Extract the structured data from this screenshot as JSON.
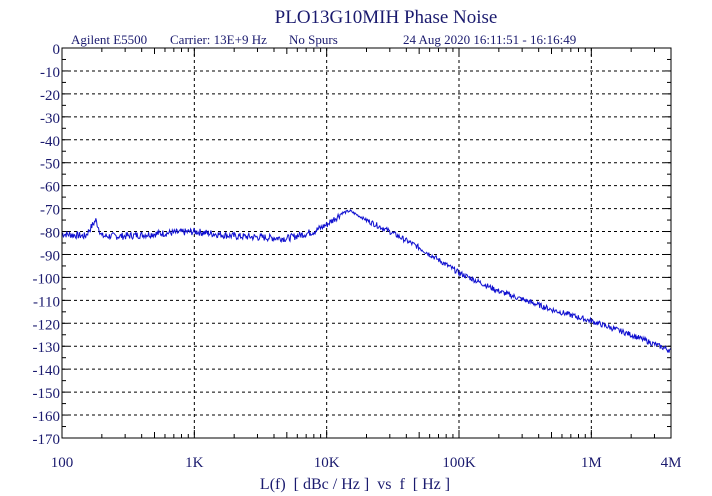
{
  "chart_data": {
    "type": "line",
    "title": "PLO13G10MIH Phase Noise",
    "subtitle": {
      "instrument": "Agilent E5500",
      "carrier": "Carrier: 13E+9 Hz",
      "spurs": "No Spurs",
      "datetime": "24 Aug 2020  16:11:51 - 16:16:49"
    },
    "xlabel": "L(f)  [ dBc / Hz ]  vs  f  [ Hz ]",
    "ylabel": "",
    "x_scale": "log",
    "xlim": [
      100,
      4000000
    ],
    "ylim": [
      -170,
      0
    ],
    "grid": true,
    "x_ticks": [
      {
        "value": 100,
        "label": "100"
      },
      {
        "value": 1000,
        "label": "1K"
      },
      {
        "value": 10000,
        "label": "10K"
      },
      {
        "value": 100000,
        "label": "100K"
      },
      {
        "value": 1000000,
        "label": "1M"
      },
      {
        "value": 4000000,
        "label": "4M"
      }
    ],
    "y_ticks": [
      "0",
      "-10",
      "-20",
      "-30",
      "-40",
      "-50",
      "-60",
      "-70",
      "-80",
      "-90",
      "-100",
      "-110",
      "-120",
      "-130",
      "-140",
      "-150",
      "-160",
      "-170"
    ],
    "series": [
      {
        "color": "#1010d0",
        "x": [
          100,
          150,
          180,
          200,
          300,
          500,
          1000,
          2000,
          5000,
          8000,
          10000,
          13000,
          15000,
          20000,
          30000,
          50000,
          100000,
          200000,
          500000,
          1000000,
          2000000,
          4000000
        ],
        "y": [
          -81,
          -82,
          -75,
          -82,
          -82,
          -81,
          -80,
          -82,
          -83,
          -80,
          -77,
          -72,
          -71,
          -75,
          -80,
          -87,
          -98,
          -106,
          -114,
          -119,
          -125,
          -132
        ]
      }
    ]
  }
}
